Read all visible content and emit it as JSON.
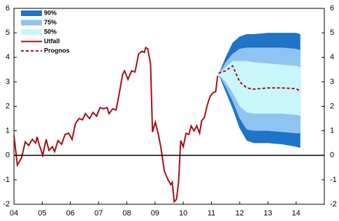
{
  "chart_data": {
    "type": "fan",
    "xlim": [
      2004,
      2015
    ],
    "xticks": [
      {
        "value": 2004,
        "label": "04"
      },
      {
        "value": 2005,
        "label": "05"
      },
      {
        "value": 2006,
        "label": "06"
      },
      {
        "value": 2007,
        "label": "07"
      },
      {
        "value": 2008,
        "label": "08"
      },
      {
        "value": 2009,
        "label": "09"
      },
      {
        "value": 2010,
        "label": "10"
      },
      {
        "value": 2011,
        "label": "11"
      },
      {
        "value": 2012,
        "label": "12"
      },
      {
        "value": 2013,
        "label": "13"
      },
      {
        "value": 2014,
        "label": "14"
      }
    ],
    "ylim": [
      -2,
      6
    ],
    "yticks": [
      -2,
      -1,
      0,
      1,
      2,
      3,
      4,
      5,
      6
    ],
    "y2lim": [
      -2,
      6
    ],
    "y2ticks": [
      -2,
      -1,
      0,
      1,
      2,
      3,
      4,
      5,
      6
    ],
    "legend": "upper-left",
    "series": [
      {
        "name": "90%",
        "kind": "band",
        "color": "#1f74c8",
        "x": [
          2011.25,
          2011.5,
          2011.75,
          2012.0,
          2012.25,
          2012.5,
          2013.0,
          2013.5,
          2014.0,
          2014.15
        ],
        "upper": [
          3.3,
          4.0,
          4.6,
          4.85,
          4.95,
          4.95,
          5.0,
          5.0,
          5.0,
          4.95
        ],
        "lower": [
          3.3,
          2.6,
          1.9,
          1.1,
          0.6,
          0.5,
          0.5,
          0.45,
          0.35,
          0.3
        ]
      },
      {
        "name": "75%",
        "kind": "band",
        "color": "#8fc3f0",
        "x": [
          2011.25,
          2011.5,
          2011.75,
          2012.0,
          2012.25,
          2012.5,
          2013.0,
          2013.5,
          2014.0,
          2014.15
        ],
        "upper": [
          3.3,
          3.8,
          4.15,
          4.35,
          4.4,
          4.4,
          4.4,
          4.4,
          4.35,
          4.3
        ],
        "lower": [
          3.3,
          2.8,
          2.2,
          1.5,
          1.05,
          1.0,
          1.0,
          0.95,
          0.9,
          0.9
        ]
      },
      {
        "name": "50%",
        "kind": "band",
        "color": "#c8f6f9",
        "x": [
          2011.25,
          2011.5,
          2011.75,
          2012.0,
          2012.25,
          2012.5,
          2013.0,
          2013.5,
          2014.0,
          2014.15
        ],
        "upper": [
          3.3,
          3.6,
          3.85,
          3.85,
          3.85,
          3.8,
          3.75,
          3.7,
          3.65,
          3.6
        ],
        "lower": [
          3.3,
          3.0,
          2.55,
          2.0,
          1.75,
          1.7,
          1.7,
          1.7,
          1.65,
          1.6
        ]
      },
      {
        "name": "Utfall",
        "kind": "line",
        "color": "#a50f15",
        "x": [
          2004.0,
          2004.12,
          2004.27,
          2004.4,
          2004.52,
          2004.65,
          2004.77,
          2004.82,
          2004.89,
          2005.02,
          2005.14,
          2005.24,
          2005.36,
          2005.44,
          2005.56,
          2005.69,
          2005.81,
          2005.94,
          2006.06,
          2006.18,
          2006.31,
          2006.43,
          2006.53,
          2006.68,
          2006.8,
          2006.93,
          2007.05,
          2007.18,
          2007.3,
          2007.37,
          2007.5,
          2007.62,
          2007.72,
          2007.85,
          2007.92,
          2008.04,
          2008.17,
          2008.29,
          2008.42,
          2008.54,
          2008.62,
          2008.67,
          2008.74,
          2008.84,
          2008.91,
          2009.01,
          2009.11,
          2009.21,
          2009.33,
          2009.46,
          2009.56,
          2009.61,
          2009.68,
          2009.76,
          2009.83,
          2009.91,
          2010.0,
          2010.1,
          2010.2,
          2010.28,
          2010.38,
          2010.48,
          2010.58,
          2010.65,
          2010.75,
          2010.85,
          2010.95,
          2011.05,
          2011.15,
          2011.22
        ],
        "values": [
          0.8,
          -0.4,
          -0.1,
          0.55,
          0.4,
          0.65,
          0.5,
          0.75,
          0.45,
          0.0,
          0.65,
          0.2,
          0.35,
          0.15,
          0.6,
          0.45,
          0.85,
          0.9,
          0.65,
          1.3,
          1.5,
          1.45,
          1.7,
          1.5,
          1.75,
          1.6,
          1.95,
          1.9,
          1.95,
          1.7,
          1.9,
          1.85,
          2.45,
          3.3,
          3.45,
          3.1,
          3.45,
          3.4,
          4.15,
          4.25,
          4.2,
          4.4,
          4.35,
          3.75,
          0.95,
          1.35,
          0.9,
          0.3,
          -0.65,
          -1.0,
          -1.2,
          -1.1,
          -1.9,
          -1.8,
          -1.15,
          0.6,
          0.35,
          0.9,
          0.85,
          1.2,
          1.0,
          1.2,
          0.9,
          1.4,
          1.55,
          2.05,
          2.4,
          2.55,
          2.6,
          3.25
        ]
      },
      {
        "name": "Prognos",
        "kind": "line",
        "dashed": true,
        "color": "#a50f15",
        "x": [
          2011.25,
          2011.5,
          2011.75,
          2012.0,
          2012.25,
          2012.5,
          2013.0,
          2013.5,
          2014.0,
          2014.15
        ],
        "values": [
          3.35,
          3.45,
          3.65,
          3.0,
          2.75,
          2.7,
          2.75,
          2.75,
          2.72,
          2.62
        ]
      }
    ]
  }
}
